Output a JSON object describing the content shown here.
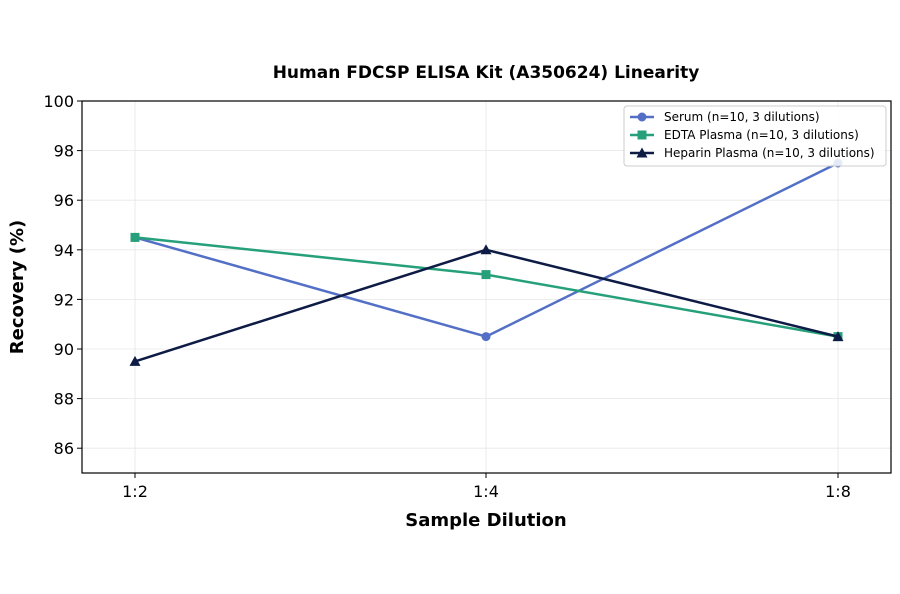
{
  "chart_data": {
    "type": "line",
    "title": "Human FDCSP ELISA Kit (A350624) Linearity",
    "xlabel": "Sample Dilution",
    "ylabel": "Recovery (%)",
    "categories": [
      "1:2",
      "1:4",
      "1:8"
    ],
    "ylim": [
      85,
      100
    ],
    "yticks": [
      86,
      88,
      90,
      92,
      94,
      96,
      98,
      100
    ],
    "grid": true,
    "legend_position": "top-right",
    "series": [
      {
        "name": "Serum (n=10, 3 dilutions)",
        "values": [
          94.5,
          90.5,
          97.5
        ],
        "color": "#5470c6",
        "marker": "circle"
      },
      {
        "name": "EDTA Plasma (n=10, 3 dilutions)",
        "values": [
          94.5,
          93.0,
          90.5
        ],
        "color": "#26a07a",
        "marker": "square"
      },
      {
        "name": "Heparin Plasma (n=10, 3 dilutions)",
        "values": [
          89.5,
          94.0,
          90.5
        ],
        "color": "#0d1b45",
        "marker": "triangle"
      }
    ]
  }
}
